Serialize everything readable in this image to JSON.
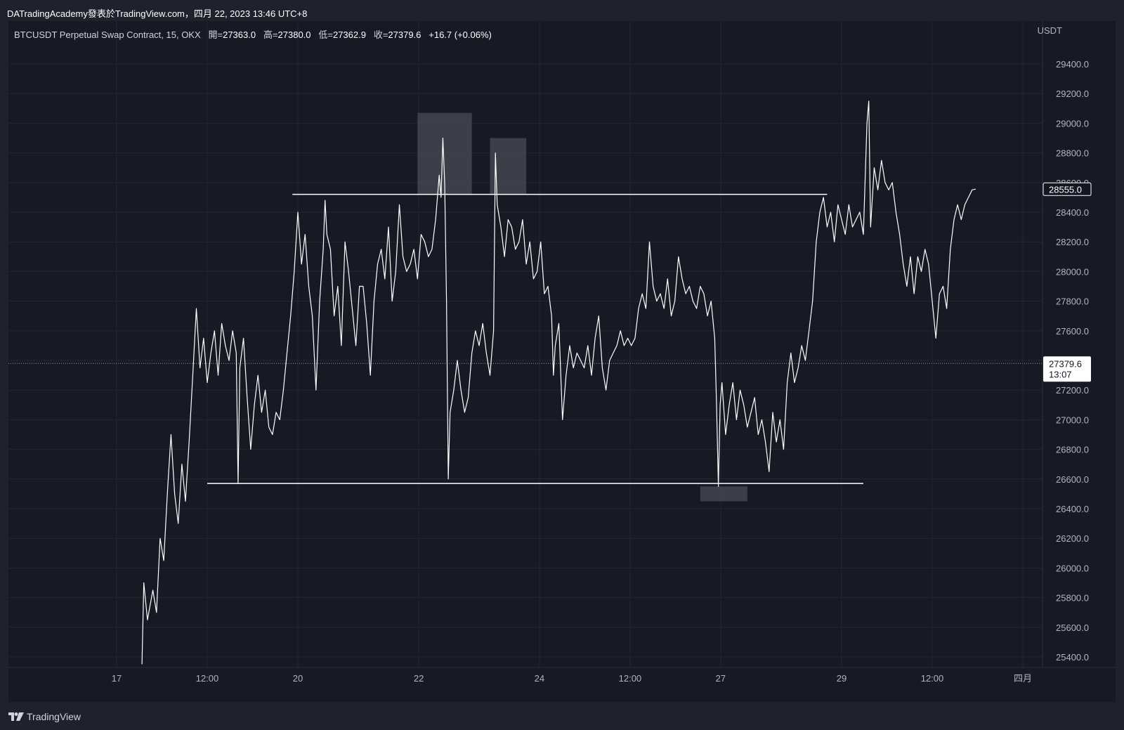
{
  "attribution": "DATradingAcademy發表於TradingView.com，四月 22, 2023 13:46 UTC+8",
  "legend": {
    "symbol": "BTCUSDT Perpetual Swap Contract, 15, OKX",
    "open_label": "開=",
    "open": "27363.0",
    "high_label": "高=",
    "high": "27380.0",
    "low_label": "低=",
    "low": "27362.9",
    "close_label": "收=",
    "close": "27379.6",
    "change": "+16.7 (+0.06%)"
  },
  "brand": "TradingView",
  "colors": {
    "background": "#161a25",
    "price_line": "#ffffff",
    "grid": "#242733",
    "zone": "#434651"
  },
  "chart_data": {
    "type": "line",
    "y_axis_unit": "USDT",
    "ylim": [
      25300,
      29550
    ],
    "y_ticks": [
      25400,
      25600,
      25800,
      26000,
      26200,
      26400,
      26600,
      26800,
      27000,
      27200,
      27400,
      27600,
      27800,
      28000,
      28200,
      28400,
      28600,
      28800,
      29000,
      29200,
      29400
    ],
    "x_ticks": [
      {
        "t": 0,
        "label": "17"
      },
      {
        "t": 0.5,
        "label": "12:00"
      },
      {
        "t": 1.0,
        "label": "20"
      },
      {
        "t": 1.667,
        "label": "22"
      },
      {
        "t": 2.333,
        "label": "24"
      },
      {
        "t": 2.833,
        "label": "12:00"
      },
      {
        "t": 3.333,
        "label": "27"
      },
      {
        "t": 4.0,
        "label": "29"
      },
      {
        "t": 4.5,
        "label": "12:00"
      },
      {
        "t": 5.0,
        "label": "四月"
      }
    ],
    "xlim": [
      -0.5,
      5.1
    ],
    "grid": true,
    "series": [
      {
        "values": [
          [
            0.14,
            25350
          ],
          [
            0.15,
            25900
          ],
          [
            0.17,
            25650
          ],
          [
            0.2,
            25850
          ],
          [
            0.22,
            25700
          ],
          [
            0.24,
            26200
          ],
          [
            0.26,
            26050
          ],
          [
            0.28,
            26500
          ],
          [
            0.3,
            26900
          ],
          [
            0.32,
            26500
          ],
          [
            0.34,
            26300
          ],
          [
            0.36,
            26700
          ],
          [
            0.38,
            26450
          ],
          [
            0.4,
            26850
          ],
          [
            0.42,
            27300
          ],
          [
            0.44,
            27750
          ],
          [
            0.46,
            27350
          ],
          [
            0.48,
            27550
          ],
          [
            0.5,
            27250
          ],
          [
            0.52,
            27450
          ],
          [
            0.54,
            27600
          ],
          [
            0.56,
            27300
          ],
          [
            0.58,
            27650
          ],
          [
            0.6,
            27500
          ],
          [
            0.62,
            27400
          ],
          [
            0.64,
            27600
          ],
          [
            0.66,
            27450
          ],
          [
            0.67,
            26570
          ],
          [
            0.68,
            27350
          ],
          [
            0.7,
            27550
          ],
          [
            0.72,
            27150
          ],
          [
            0.74,
            26800
          ],
          [
            0.76,
            27100
          ],
          [
            0.78,
            27300
          ],
          [
            0.8,
            27050
          ],
          [
            0.82,
            27200
          ],
          [
            0.84,
            26950
          ],
          [
            0.86,
            26900
          ],
          [
            0.88,
            27050
          ],
          [
            0.9,
            27000
          ],
          [
            0.92,
            27200
          ],
          [
            0.94,
            27450
          ],
          [
            0.96,
            27700
          ],
          [
            0.98,
            28000
          ],
          [
            1.0,
            28400
          ],
          [
            1.02,
            28050
          ],
          [
            1.04,
            28250
          ],
          [
            1.06,
            27900
          ],
          [
            1.08,
            27700
          ],
          [
            1.1,
            27200
          ],
          [
            1.12,
            27800
          ],
          [
            1.14,
            28150
          ],
          [
            1.15,
            28480
          ],
          [
            1.16,
            28250
          ],
          [
            1.18,
            28150
          ],
          [
            1.2,
            27700
          ],
          [
            1.22,
            27900
          ],
          [
            1.24,
            27500
          ],
          [
            1.26,
            28200
          ],
          [
            1.28,
            28000
          ],
          [
            1.3,
            27750
          ],
          [
            1.32,
            27500
          ],
          [
            1.34,
            27900
          ],
          [
            1.36,
            27900
          ],
          [
            1.38,
            27650
          ],
          [
            1.4,
            27300
          ],
          [
            1.42,
            27800
          ],
          [
            1.44,
            28050
          ],
          [
            1.46,
            28150
          ],
          [
            1.48,
            27950
          ],
          [
            1.5,
            28300
          ],
          [
            1.52,
            27800
          ],
          [
            1.54,
            28000
          ],
          [
            1.56,
            28450
          ],
          [
            1.58,
            28100
          ],
          [
            1.6,
            28000
          ],
          [
            1.62,
            28050
          ],
          [
            1.64,
            28150
          ],
          [
            1.66,
            27950
          ],
          [
            1.68,
            28250
          ],
          [
            1.7,
            28200
          ],
          [
            1.72,
            28100
          ],
          [
            1.74,
            28150
          ],
          [
            1.76,
            28350
          ],
          [
            1.78,
            28650
          ],
          [
            1.79,
            28500
          ],
          [
            1.8,
            28900
          ],
          [
            1.81,
            28600
          ],
          [
            1.82,
            27800
          ],
          [
            1.83,
            26600
          ],
          [
            1.84,
            27050
          ],
          [
            1.86,
            27200
          ],
          [
            1.88,
            27400
          ],
          [
            1.9,
            27200
          ],
          [
            1.92,
            27050
          ],
          [
            1.94,
            27150
          ],
          [
            1.96,
            27450
          ],
          [
            1.98,
            27600
          ],
          [
            2.0,
            27500
          ],
          [
            2.02,
            27650
          ],
          [
            2.04,
            27450
          ],
          [
            2.06,
            27300
          ],
          [
            2.08,
            27600
          ],
          [
            2.09,
            28800
          ],
          [
            2.1,
            28450
          ],
          [
            2.12,
            28300
          ],
          [
            2.14,
            28100
          ],
          [
            2.16,
            28350
          ],
          [
            2.18,
            28300
          ],
          [
            2.2,
            28150
          ],
          [
            2.22,
            28200
          ],
          [
            2.24,
            28350
          ],
          [
            2.26,
            28050
          ],
          [
            2.28,
            28200
          ],
          [
            2.3,
            27950
          ],
          [
            2.32,
            28000
          ],
          [
            2.34,
            28200
          ],
          [
            2.36,
            27850
          ],
          [
            2.38,
            27900
          ],
          [
            2.4,
            27700
          ],
          [
            2.41,
            27300
          ],
          [
            2.42,
            27500
          ],
          [
            2.44,
            27650
          ],
          [
            2.46,
            27000
          ],
          [
            2.48,
            27300
          ],
          [
            2.5,
            27500
          ],
          [
            2.52,
            27350
          ],
          [
            2.54,
            27450
          ],
          [
            2.56,
            27400
          ],
          [
            2.58,
            27350
          ],
          [
            2.6,
            27500
          ],
          [
            2.62,
            27300
          ],
          [
            2.64,
            27550
          ],
          [
            2.66,
            27700
          ],
          [
            2.68,
            27350
          ],
          [
            2.7,
            27200
          ],
          [
            2.72,
            27400
          ],
          [
            2.74,
            27450
          ],
          [
            2.76,
            27500
          ],
          [
            2.78,
            27600
          ],
          [
            2.8,
            27500
          ],
          [
            2.82,
            27550
          ],
          [
            2.84,
            27500
          ],
          [
            2.86,
            27550
          ],
          [
            2.88,
            27750
          ],
          [
            2.9,
            27850
          ],
          [
            2.92,
            27750
          ],
          [
            2.94,
            28200
          ],
          [
            2.96,
            27900
          ],
          [
            2.98,
            27800
          ],
          [
            3.0,
            27850
          ],
          [
            3.02,
            27750
          ],
          [
            3.04,
            27950
          ],
          [
            3.06,
            27700
          ],
          [
            3.08,
            27800
          ],
          [
            3.1,
            28100
          ],
          [
            3.12,
            27950
          ],
          [
            3.14,
            27850
          ],
          [
            3.16,
            27900
          ],
          [
            3.18,
            27800
          ],
          [
            3.2,
            27750
          ],
          [
            3.22,
            27900
          ],
          [
            3.24,
            27850
          ],
          [
            3.26,
            27700
          ],
          [
            3.28,
            27800
          ],
          [
            3.3,
            27550
          ],
          [
            3.31,
            27100
          ],
          [
            3.32,
            26550
          ],
          [
            3.33,
            27100
          ],
          [
            3.34,
            27250
          ],
          [
            3.36,
            26900
          ],
          [
            3.38,
            27100
          ],
          [
            3.4,
            27250
          ],
          [
            3.42,
            27000
          ],
          [
            3.44,
            27200
          ],
          [
            3.46,
            27100
          ],
          [
            3.48,
            26950
          ],
          [
            3.5,
            27050
          ],
          [
            3.52,
            27150
          ],
          [
            3.54,
            26900
          ],
          [
            3.56,
            27000
          ],
          [
            3.58,
            26850
          ],
          [
            3.6,
            26650
          ],
          [
            3.62,
            27050
          ],
          [
            3.64,
            26850
          ],
          [
            3.66,
            27000
          ],
          [
            3.68,
            26800
          ],
          [
            3.7,
            27250
          ],
          [
            3.72,
            27450
          ],
          [
            3.74,
            27250
          ],
          [
            3.76,
            27350
          ],
          [
            3.78,
            27500
          ],
          [
            3.8,
            27400
          ],
          [
            3.82,
            27600
          ],
          [
            3.84,
            27800
          ],
          [
            3.86,
            28200
          ],
          [
            3.88,
            28400
          ],
          [
            3.9,
            28500
          ],
          [
            3.92,
            28300
          ],
          [
            3.94,
            28400
          ],
          [
            3.96,
            28200
          ],
          [
            3.98,
            28450
          ],
          [
            4.0,
            28350
          ],
          [
            4.02,
            28250
          ],
          [
            4.04,
            28450
          ],
          [
            4.06,
            28300
          ],
          [
            4.08,
            28350
          ],
          [
            4.1,
            28400
          ],
          [
            4.12,
            28250
          ],
          [
            4.14,
            29000
          ],
          [
            4.15,
            29150
          ],
          [
            4.16,
            28300
          ],
          [
            4.18,
            28700
          ],
          [
            4.2,
            28550
          ],
          [
            4.22,
            28750
          ],
          [
            4.24,
            28600
          ],
          [
            4.26,
            28550
          ],
          [
            4.28,
            28600
          ],
          [
            4.3,
            28400
          ],
          [
            4.32,
            28250
          ],
          [
            4.34,
            28050
          ],
          [
            4.36,
            27900
          ],
          [
            4.38,
            28100
          ],
          [
            4.4,
            27850
          ],
          [
            4.42,
            28100
          ],
          [
            4.44,
            28000
          ],
          [
            4.46,
            28150
          ],
          [
            4.48,
            28050
          ],
          [
            4.5,
            27800
          ],
          [
            4.52,
            27550
          ],
          [
            4.54,
            27850
          ],
          [
            4.56,
            27900
          ],
          [
            4.58,
            27750
          ],
          [
            4.6,
            28150
          ],
          [
            4.62,
            28350
          ],
          [
            4.64,
            28450
          ],
          [
            4.66,
            28350
          ],
          [
            4.68,
            28450
          ],
          [
            4.7,
            28500
          ],
          [
            4.72,
            28550
          ],
          [
            4.74,
            28556
          ]
        ]
      }
    ],
    "horizontal_lines": [
      {
        "y": 28520,
        "x_from": 0.97,
        "x_to": 3.92
      },
      {
        "y": 26570,
        "x_from": 0.5,
        "x_to": 4.12
      }
    ],
    "shaded_zones": [
      {
        "x_from": 1.66,
        "x_to": 1.96,
        "y_from": 28520,
        "y_to": 29070
      },
      {
        "x_from": 2.06,
        "x_to": 2.26,
        "y_from": 28520,
        "y_to": 28900
      },
      {
        "x_from": 3.22,
        "x_to": 3.48,
        "y_from": 26450,
        "y_to": 26550
      }
    ],
    "current_price_line": 27379.6,
    "price_labels": [
      {
        "value": "28555.0",
        "y": 28555
      },
      {
        "value": "27379.6",
        "countdown": "13:07",
        "y": 27379.6
      }
    ]
  }
}
